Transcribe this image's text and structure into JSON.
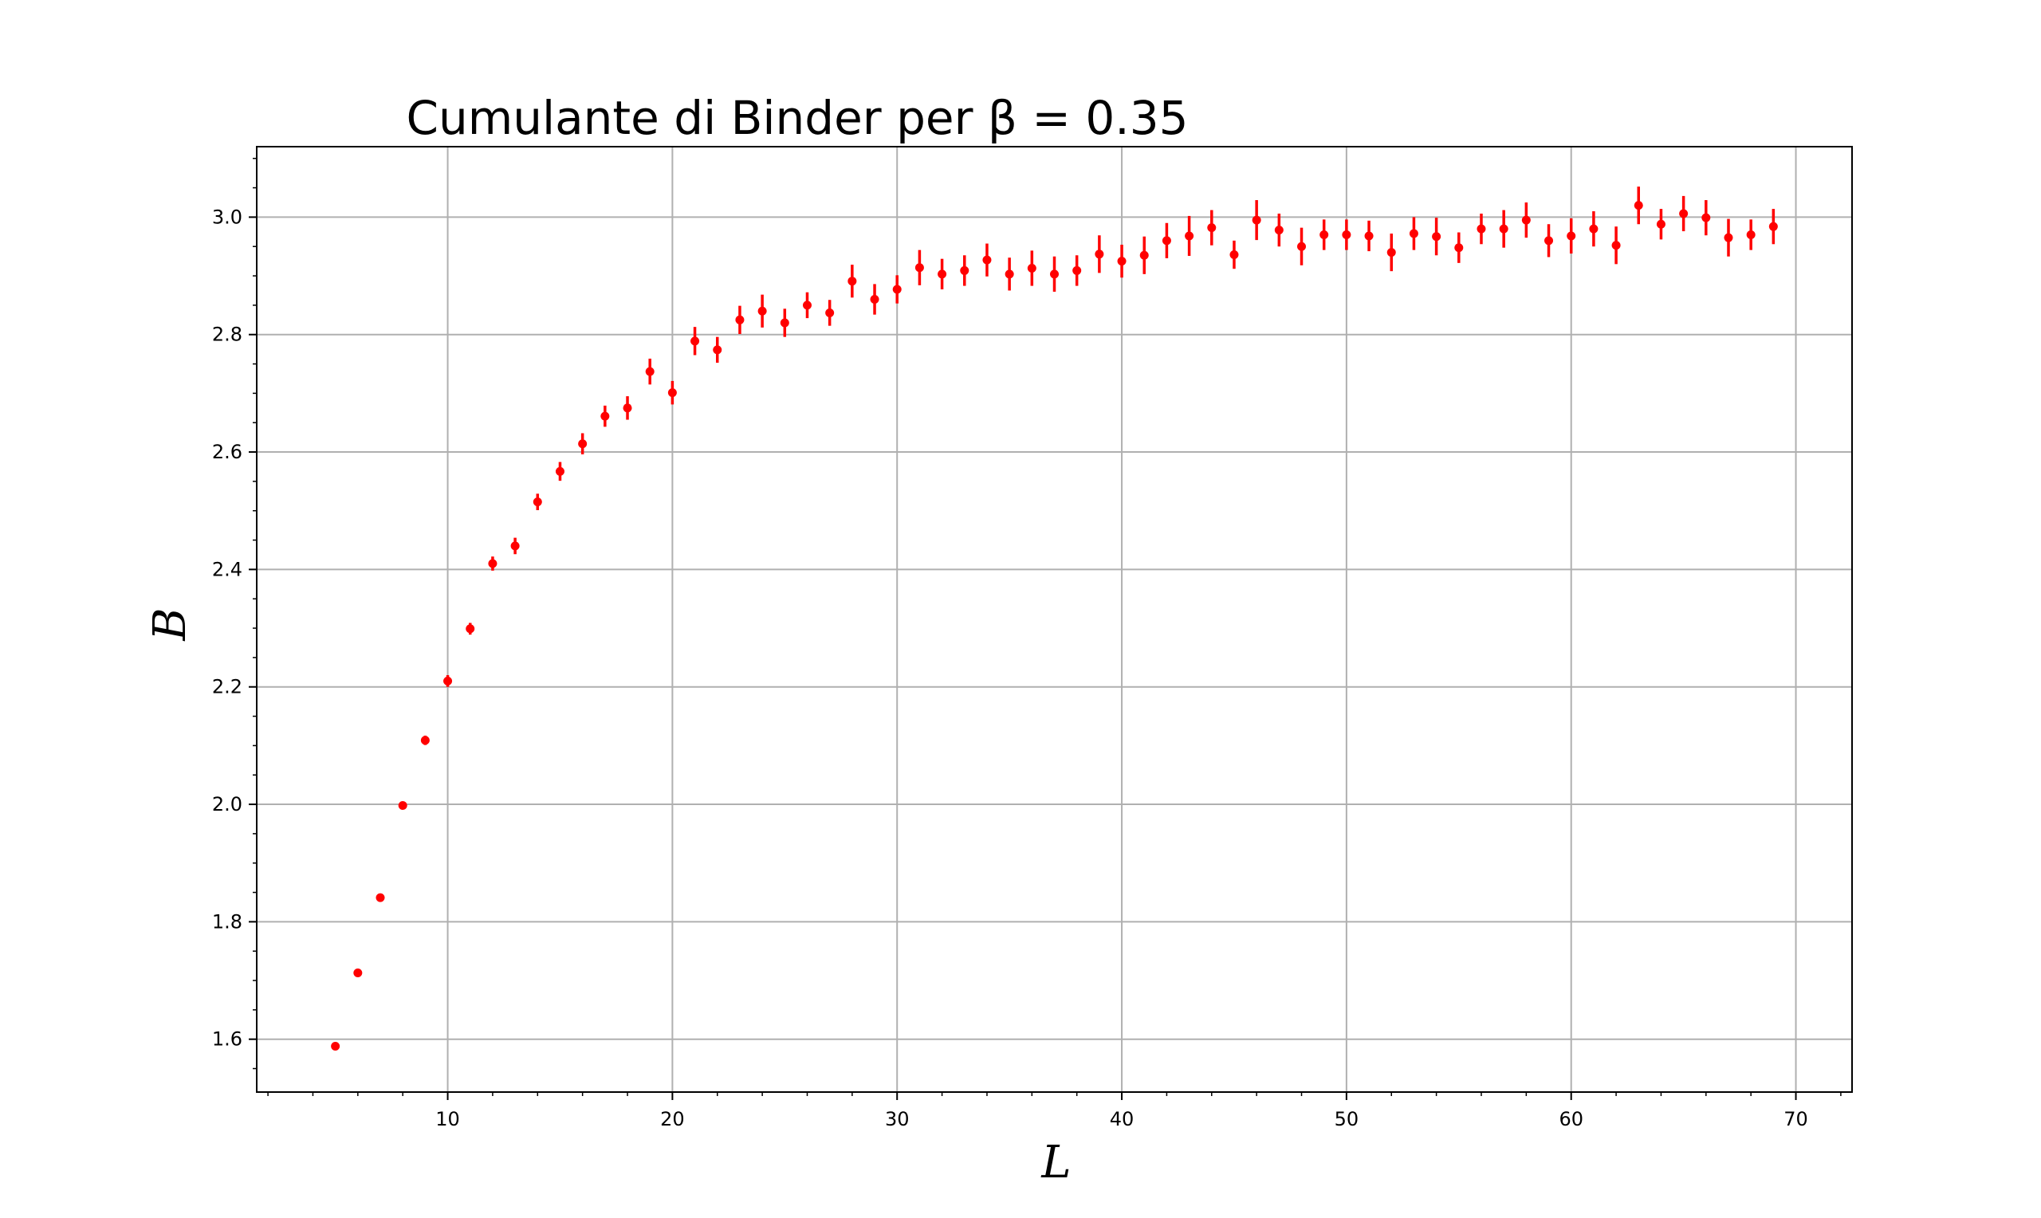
{
  "chart_data": {
    "type": "scatter",
    "title": "Cumulante di Binder per β = 0.35",
    "xlabel": "L",
    "ylabel": "B",
    "xlim": [
      1.5,
      72.5
    ],
    "ylim": [
      1.51,
      3.12
    ],
    "xticks": [
      10,
      20,
      30,
      40,
      50,
      60,
      70
    ],
    "yticks": [
      1.6,
      1.8,
      2.0,
      2.2,
      2.4,
      2.6,
      2.8,
      3.0
    ],
    "ytick_labels": [
      "1.6",
      "1.8",
      "2.0",
      "2.2",
      "2.4",
      "2.6",
      "2.8",
      "3.0"
    ],
    "grid": true,
    "marker_color": "#ff0000",
    "series": [
      {
        "x": [
          5,
          6,
          7,
          8,
          9,
          10,
          11,
          12,
          13,
          14,
          15,
          16,
          17,
          18,
          19,
          20,
          21,
          22,
          23,
          24,
          25,
          26,
          27,
          28,
          29,
          30,
          31,
          32,
          33,
          34,
          35,
          36,
          37,
          38,
          39,
          40,
          41,
          42,
          43,
          44,
          45,
          46,
          47,
          48,
          49,
          50,
          51,
          52,
          53,
          54,
          55,
          56,
          57,
          58,
          59,
          60,
          61,
          62,
          63,
          64,
          65,
          66,
          67,
          68,
          69
        ],
        "y": [
          1.588,
          1.713,
          1.841,
          1.998,
          2.109,
          2.21,
          2.299,
          2.41,
          2.44,
          2.515,
          2.567,
          2.614,
          2.661,
          2.675,
          2.737,
          2.701,
          2.789,
          2.774,
          2.825,
          2.84,
          2.82,
          2.85,
          2.837,
          2.891,
          2.86,
          2.877,
          2.914,
          2.903,
          2.909,
          2.927,
          2.903,
          2.913,
          2.903,
          2.909,
          2.937,
          2.925,
          2.935,
          2.96,
          2.968,
          2.982,
          2.936,
          2.995,
          2.978,
          2.95,
          2.97,
          2.97,
          2.968,
          2.94,
          2.972,
          2.967,
          2.948,
          2.98,
          2.98,
          2.995,
          2.96,
          2.968,
          2.98,
          2.952,
          3.02,
          2.988,
          3.006,
          2.999,
          2.965,
          2.97,
          2.984
        ],
        "yerr": [
          0.004,
          0.005,
          0.006,
          0.006,
          0.008,
          0.01,
          0.01,
          0.012,
          0.014,
          0.014,
          0.016,
          0.018,
          0.018,
          0.02,
          0.022,
          0.02,
          0.024,
          0.022,
          0.024,
          0.028,
          0.024,
          0.022,
          0.022,
          0.028,
          0.026,
          0.024,
          0.03,
          0.026,
          0.026,
          0.028,
          0.028,
          0.03,
          0.03,
          0.026,
          0.032,
          0.028,
          0.032,
          0.03,
          0.034,
          0.03,
          0.024,
          0.034,
          0.028,
          0.032,
          0.026,
          0.026,
          0.026,
          0.032,
          0.028,
          0.032,
          0.026,
          0.026,
          0.032,
          0.03,
          0.028,
          0.03,
          0.03,
          0.032,
          0.032,
          0.026,
          0.03,
          0.03,
          0.032,
          0.026,
          0.03
        ]
      }
    ]
  }
}
